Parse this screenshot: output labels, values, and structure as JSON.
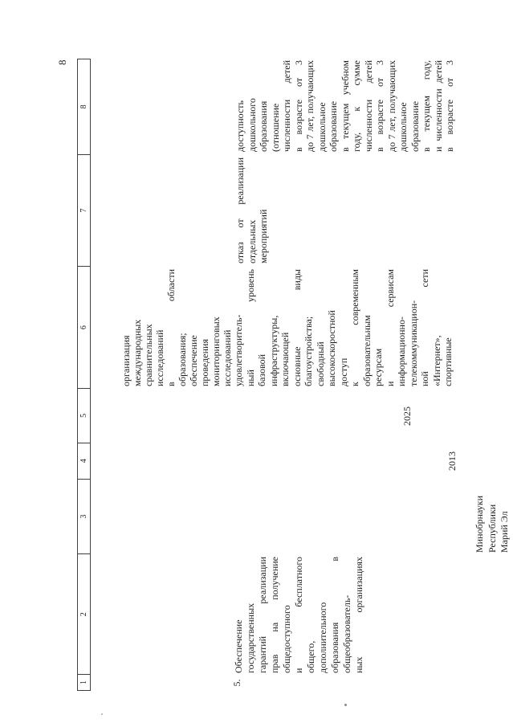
{
  "page": {
    "number": "8"
  },
  "table": {
    "header_cells": [
      "1",
      "2",
      "3",
      "4",
      "5",
      "6",
      "7",
      "8"
    ],
    "row4_continuation": {
      "expected_results_lines": [
        "организация",
        "международных",
        "сравнительных",
        "исследований",
        "в области",
        "образования;",
        "обеспечение",
        "проведения",
        "мониторинговых",
        "исследований"
      ]
    },
    "row5": {
      "number": "5.",
      "measure_lines": [
        "Обеспечение",
        "государственных",
        "гарантий реализации",
        "прав на получение",
        "общедоступного",
        "и бесплатного",
        "общего,",
        "дополнительного",
        "образования в",
        "общеобразователь-",
        "ных организациях"
      ],
      "executor_lines": [
        "Минобрнауки",
        "Республики",
        "Марий Эл"
      ],
      "start_year": "2013",
      "end_year": "2025",
      "expected_results_lines": [
        "удовлетворитель-",
        "ный уровень",
        "базовой",
        "инфраструктуры,",
        "включающей",
        "основные виды",
        "благоустройства;",
        "свободный",
        "высокоскоростной",
        "доступ",
        "к современным",
        "образовательным",
        "ресурсам",
        "и сервисам",
        "информационно-",
        "телекоммуникацион-",
        "ной сети",
        "«Интернет»,",
        "спортивные"
      ],
      "consequences_lines": [
        "отказ от реализации",
        "отдельных",
        "мероприятий"
      ],
      "indicator_lines": [
        "доступность",
        "дошкольного",
        "образования",
        "(отношение",
        "численности детей",
        "в возрасте от 3",
        "до 7 лет, получающих",
        "дошкольное",
        "образование",
        "в текущем учебном",
        "году, к сумме",
        "численности детей",
        "в возрасте от 3",
        "до 7 лет, получающих",
        "дошкольное",
        "образование",
        "в текущем году,",
        "и численности детей",
        "в возрасте от 3"
      ]
    }
  }
}
